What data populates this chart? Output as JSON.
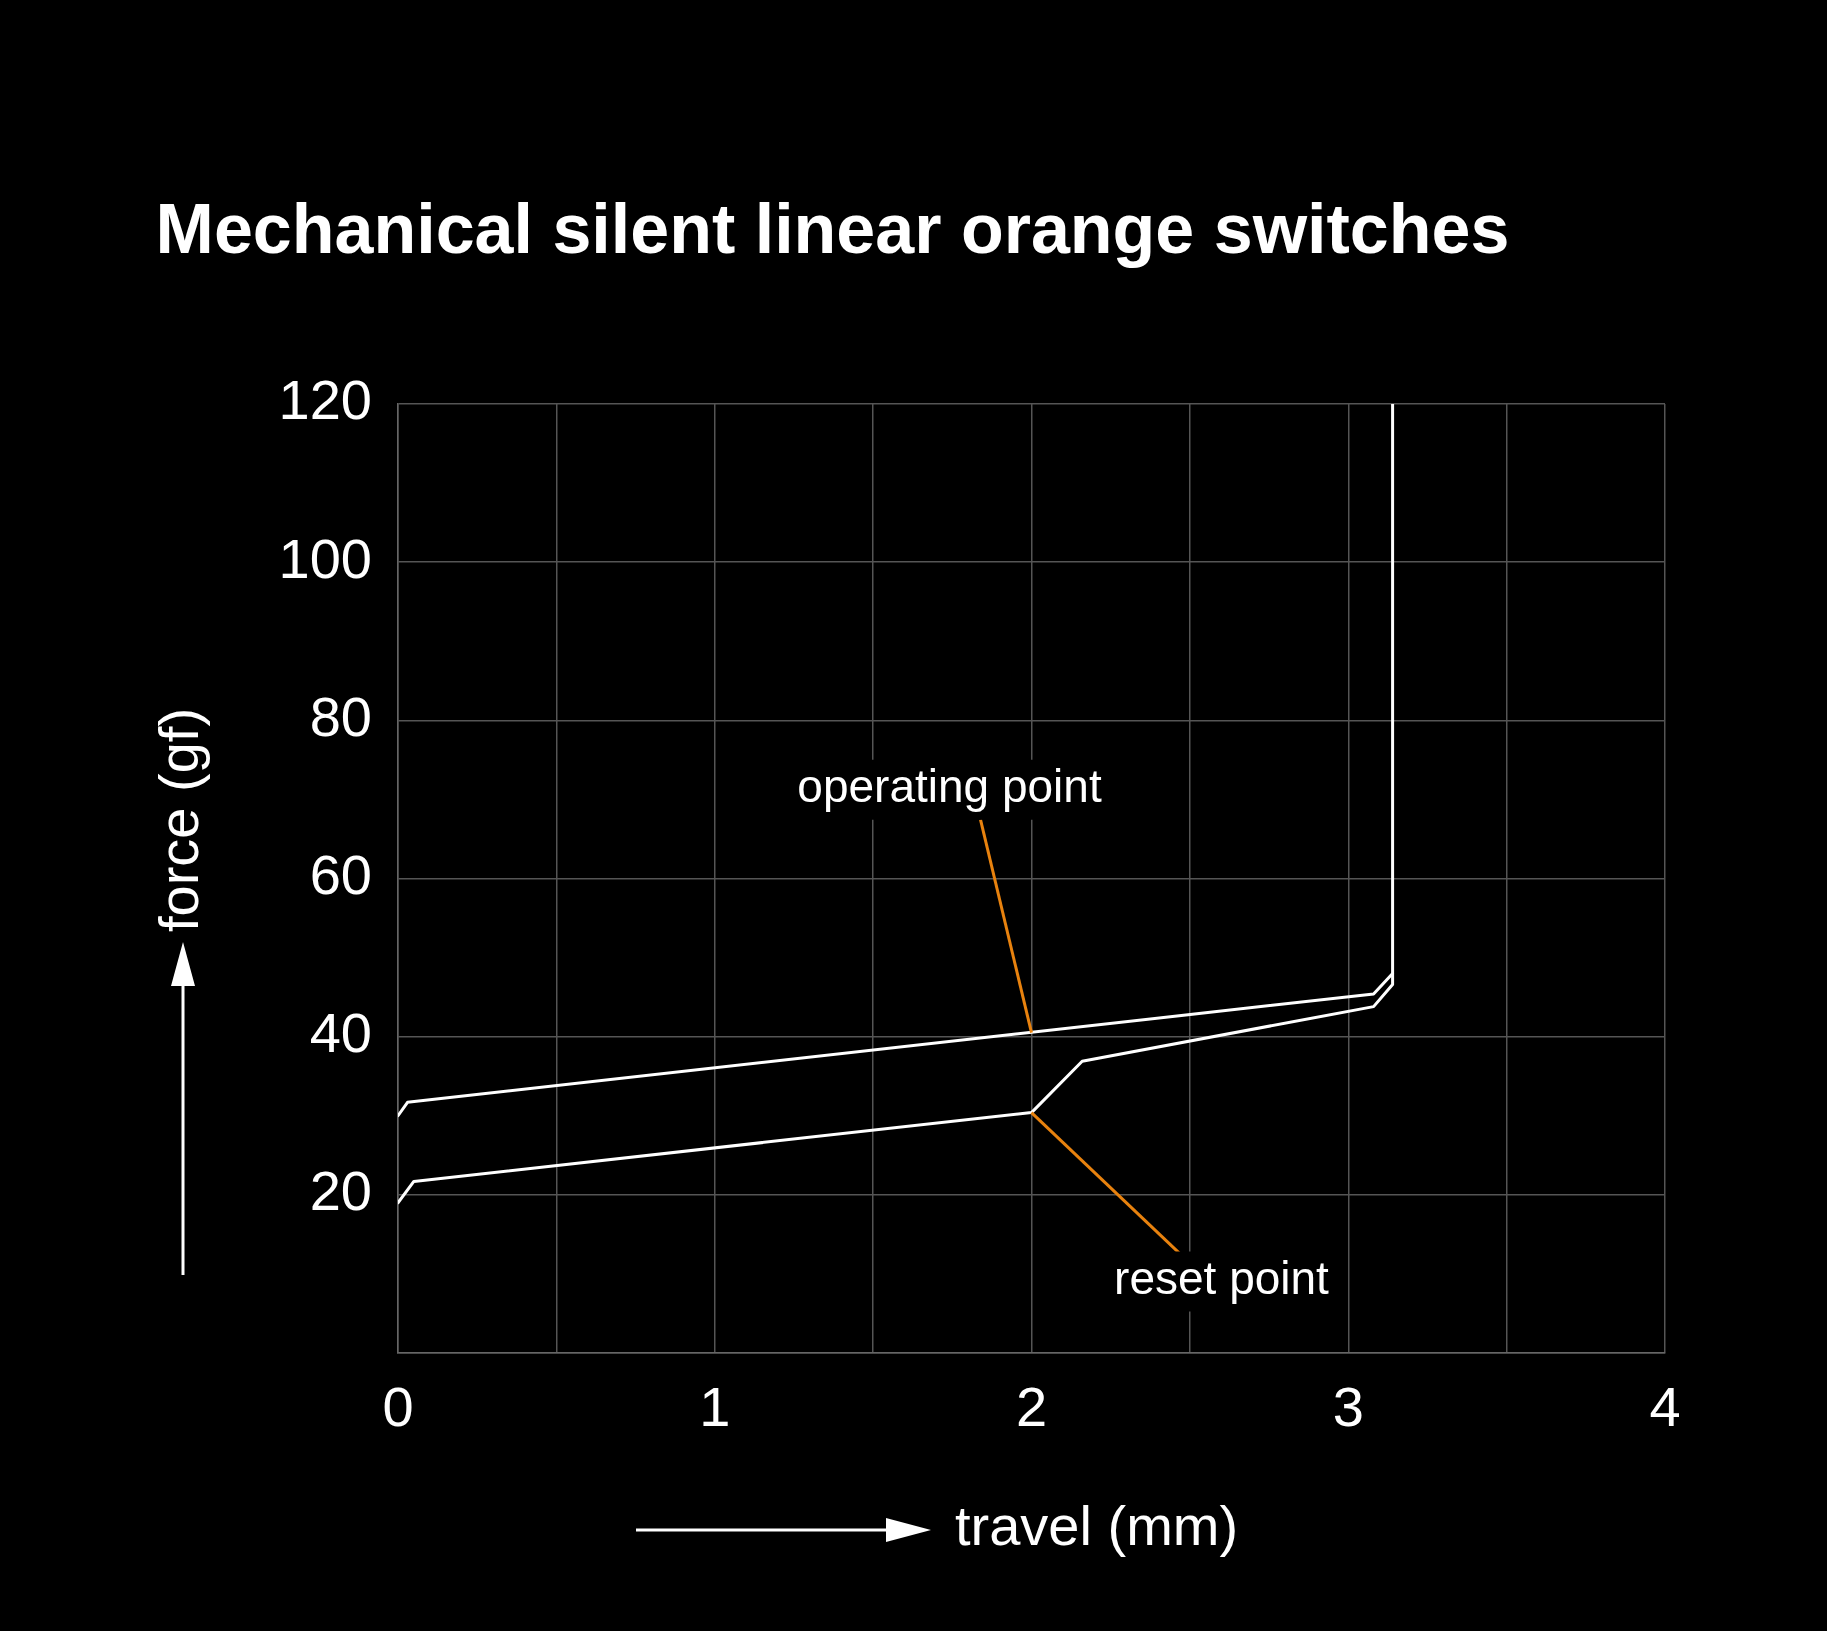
{
  "chart_data": {
    "type": "line",
    "title": "Mechanical silent linear orange switches",
    "xlabel": "travel (mm)",
    "ylabel": "force (gf)",
    "series": [
      {
        "color": "#ffffff",
        "x": [
          0,
          0.03,
          3.08,
          3.14,
          3.14
        ],
        "values": [
          30,
          31.7,
          45.4,
          48,
          120
        ]
      },
      {
        "color": "#ffffff",
        "x": [
          0,
          0.05,
          2.0,
          2.16,
          3.08,
          3.14,
          3.14
        ],
        "values": [
          19,
          21.7,
          30.4,
          36.9,
          43.8,
          46.6,
          48
        ]
      }
    ],
    "xlim": [
      0,
      4
    ],
    "xticks": [
      0,
      {
        "value": 0.5,
        "label": null
      },
      1,
      {
        "value": 1.5,
        "label": null
      },
      2,
      {
        "value": 2.5,
        "label": null
      },
      3,
      {
        "value": 3.5,
        "label": null
      },
      4
    ],
    "ylim": [
      0,
      120
    ],
    "yticks": [
      {
        "value": 0,
        "label": null
      },
      20,
      40,
      60,
      80,
      100,
      120
    ],
    "grid": true,
    "legend": false,
    "marker": "none",
    "line_style": "solid",
    "annotations": [
      {
        "text": "operating point",
        "x": 2.0,
        "y": 40.5
      },
      {
        "text": "reset point",
        "x": 2.0,
        "y": 30.4
      }
    ]
  }
}
